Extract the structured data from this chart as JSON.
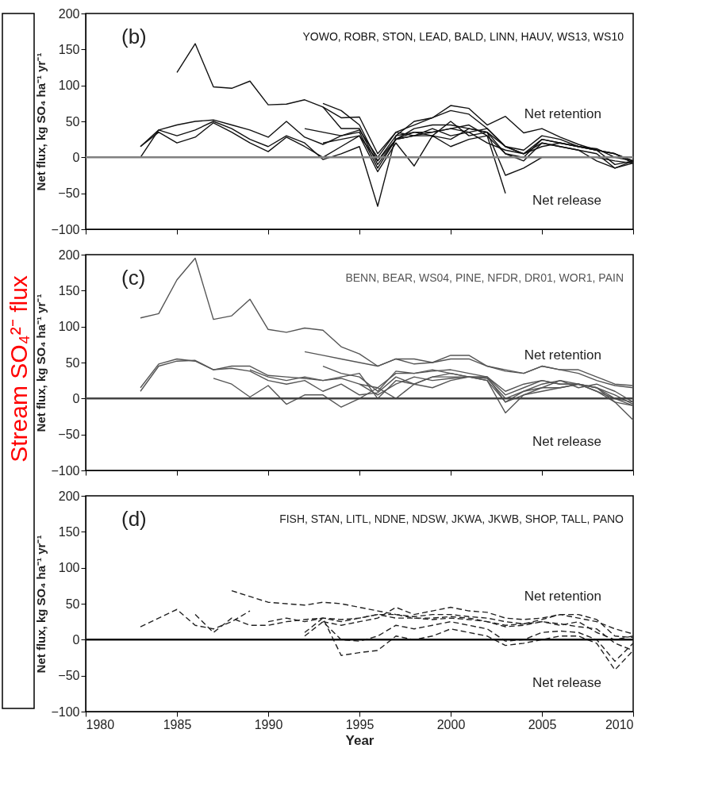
{
  "chart_data": [
    {
      "type": "other",
      "title": "Stream SO₄²⁻ flux",
      "color": "#ff0000"
    },
    {
      "type": "line",
      "ylabel": "Net flux, kg SO₄ ha⁻¹ yr⁻¹",
      "annotations": [
        "(b)",
        "YOWO, ROBR, STON, LEAD, BALD, LINN, HAUV, WS13, WS10",
        "Net retention",
        "Net release"
      ],
      "xlim": [
        1980,
        2010
      ],
      "xticks": [
        1980,
        1985,
        1990,
        1995,
        2000,
        2005,
        2010
      ],
      "ylim": [
        -100,
        200
      ],
      "yticks": [
        -100,
        -50,
        0,
        50,
        100,
        150,
        200
      ],
      "tick_labels": "y",
      "grid": false,
      "legend": false,
      "line_style": "solid",
      "ref_lines": [
        {
          "axis": "y",
          "value": 0,
          "color": "#808080"
        }
      ],
      "series": [
        {
          "color": "#111111",
          "x": [
            1985,
            1986,
            1987,
            1988,
            1989,
            1990,
            1991,
            1992,
            1993,
            1994,
            1995,
            1996,
            1997,
            1998,
            1999,
            2000,
            2001,
            2002,
            2003,
            2004,
            2005,
            2006,
            2007,
            2008,
            2009,
            2010
          ],
          "values": [
            118,
            158,
            98,
            96,
            106,
            73,
            74,
            80,
            70,
            55,
            56,
            5,
            35,
            45,
            55,
            72,
            68,
            45,
            57,
            34,
            40,
            28,
            18,
            10,
            5,
            -8
          ]
        },
        {
          "color": "#111111",
          "x": [
            1983,
            1984,
            1985,
            1986,
            1987,
            1988,
            1989,
            1990,
            1991,
            1992,
            1993,
            1994,
            1995,
            1996,
            1997,
            1998,
            1999,
            2000,
            2001,
            2002,
            2003,
            2004,
            2005,
            2006,
            2007,
            2008,
            2009,
            2010
          ],
          "values": [
            0,
            38,
            30,
            38,
            50,
            40,
            25,
            15,
            30,
            20,
            -3,
            5,
            15,
            -68,
            30,
            35,
            30,
            50,
            30,
            35,
            -25,
            -15,
            0,
            0,
            0,
            0,
            -5,
            -8
          ]
        },
        {
          "color": "#111111",
          "x": [
            1983,
            1984,
            1985,
            1986,
            1987,
            1988,
            1989,
            1990,
            1991,
            1992,
            1993,
            1994,
            1995,
            1996,
            1997,
            1998,
            1999,
            2000,
            2001,
            2002,
            2003,
            2004,
            2005,
            2006,
            2007,
            2008,
            2009,
            2010
          ],
          "values": [
            15,
            38,
            45,
            50,
            52,
            45,
            38,
            28,
            50,
            28,
            18,
            30,
            35,
            -15,
            25,
            35,
            35,
            40,
            35,
            40,
            15,
            5,
            25,
            20,
            15,
            10,
            5,
            -5
          ]
        },
        {
          "color": "#111111",
          "x": [
            1983,
            1984,
            1985,
            1986,
            1987,
            1988,
            1989,
            1990,
            1991,
            1992,
            1993,
            1994,
            1995,
            1996,
            1997,
            1998,
            1999,
            2000,
            2001,
            2002,
            2003,
            2004,
            2005,
            2006,
            2007,
            2008,
            2009,
            2010
          ],
          "values": [
            15,
            35,
            20,
            28,
            48,
            35,
            20,
            8,
            28,
            15,
            0,
            15,
            30,
            -20,
            20,
            -12,
            30,
            15,
            25,
            30,
            5,
            -5,
            20,
            15,
            10,
            -5,
            -15,
            -5
          ]
        },
        {
          "color": "#111111",
          "x": [
            1992,
            1993,
            1994,
            1995,
            1996,
            1997,
            1998,
            1999,
            2000,
            2001,
            2002,
            2003
          ],
          "values": [
            40,
            35,
            30,
            38,
            0,
            35,
            30,
            35,
            40,
            45,
            30,
            -50
          ]
        },
        {
          "color": "#111111",
          "x": [
            1993,
            1994,
            1995,
            1996,
            1997,
            1998,
            1999,
            2000,
            2001,
            2002,
            2003,
            2004,
            2005,
            2006,
            2007,
            2008,
            2009,
            2010
          ],
          "values": [
            75,
            65,
            45,
            -5,
            30,
            50,
            55,
            65,
            60,
            40,
            15,
            10,
            30,
            25,
            15,
            12,
            0,
            -5
          ]
        },
        {
          "color": "#111111",
          "x": [
            1993,
            1994,
            1995,
            1996,
            1997,
            1998,
            1999,
            2000,
            2001,
            2002,
            2003,
            2004,
            2005,
            2006,
            2007,
            2008,
            2009,
            2010
          ],
          "values": [
            70,
            40,
            40,
            -10,
            25,
            40,
            45,
            45,
            40,
            35,
            5,
            0,
            25,
            20,
            15,
            10,
            -10,
            -5
          ]
        },
        {
          "color": "#111111",
          "x": [
            1993,
            1994,
            1995,
            1996,
            1997,
            1998,
            1999,
            2000,
            2001,
            2002,
            2003,
            2004,
            2005,
            2006,
            2007,
            2008,
            2009,
            2010
          ],
          "values": [
            20,
            25,
            30,
            -5,
            25,
            30,
            40,
            30,
            35,
            20,
            10,
            5,
            20,
            15,
            10,
            5,
            -15,
            -8
          ]
        },
        {
          "color": "#111111",
          "x": [
            1997,
            1998,
            1999,
            2000,
            2001,
            2002,
            2003,
            2004,
            2005,
            2006,
            2007,
            2008,
            2009,
            2010
          ],
          "values": [
            25,
            30,
            30,
            25,
            40,
            35,
            15,
            5,
            15,
            20,
            15,
            10,
            5,
            -5
          ]
        }
      ]
    },
    {
      "type": "line",
      "ylabel": "Net flux, kg SO₄ ha⁻¹ yr⁻¹",
      "annotations": [
        "(c)",
        "BENN, BEAR, WS04, PINE, NFDR, DR01, WOR1, PAIN",
        "Net retention",
        "Net release"
      ],
      "xlim": [
        1980,
        2010
      ],
      "xticks": [
        1980,
        1985,
        1990,
        1995,
        2000,
        2005,
        2010
      ],
      "ylim": [
        -100,
        200
      ],
      "yticks": [
        -100,
        -50,
        0,
        50,
        100,
        150,
        200
      ],
      "tick_labels": "y",
      "grid": false,
      "legend": false,
      "line_style": "solid",
      "ref_lines": [
        {
          "axis": "y",
          "value": 0,
          "color": "#444444"
        }
      ],
      "series": [
        {
          "color": "#555555",
          "x": [
            1983,
            1984,
            1985,
            1986,
            1987,
            1988,
            1989,
            1990,
            1991,
            1992,
            1993,
            1994,
            1995,
            1996,
            1997,
            1998,
            1999,
            2000,
            2001,
            2002,
            2003,
            2004,
            2005,
            2006,
            2007,
            2008,
            2009,
            2010
          ],
          "values": [
            112,
            118,
            165,
            195,
            110,
            115,
            138,
            96,
            92,
            98,
            95,
            72,
            62,
            45,
            55,
            48,
            50,
            60,
            60,
            45,
            38,
            35,
            45,
            40,
            35,
            25,
            18,
            15
          ]
        },
        {
          "color": "#555555",
          "x": [
            1983,
            1984,
            1985,
            1986,
            1987,
            1988,
            1989,
            1990,
            1991,
            1992,
            1993,
            1994,
            1995,
            1996,
            1997,
            1998,
            1999,
            2000,
            2001,
            2002,
            2003,
            2004,
            2005,
            2006,
            2007,
            2008,
            2009,
            2010
          ],
          "values": [
            15,
            48,
            55,
            52,
            40,
            45,
            45,
            32,
            30,
            28,
            25,
            28,
            20,
            15,
            35,
            35,
            38,
            40,
            35,
            30,
            5,
            15,
            25,
            20,
            20,
            15,
            0,
            -10
          ]
        },
        {
          "color": "#555555",
          "x": [
            1983,
            1984,
            1985,
            1986,
            1987,
            1988,
            1989,
            1990,
            1991,
            1992,
            1993,
            1994,
            1995,
            1996,
            1997,
            1998,
            1999,
            2000,
            2001,
            2002,
            2003,
            2004,
            2005,
            2006,
            2007,
            2008,
            2009,
            2010
          ],
          "values": [
            10,
            45,
            52,
            53,
            40,
            42,
            38,
            25,
            20,
            25,
            10,
            20,
            5,
            8,
            30,
            20,
            30,
            35,
            30,
            25,
            -20,
            5,
            15,
            15,
            20,
            10,
            -5,
            -30
          ]
        },
        {
          "color": "#555555",
          "x": [
            1987,
            1988,
            1989,
            1990,
            1991,
            1992,
            1993,
            1994,
            1995,
            1996,
            1997,
            1998,
            1999,
            2000,
            2001,
            2002,
            2003,
            2004,
            2005,
            2006,
            2007,
            2008,
            2009,
            2010
          ],
          "values": [
            28,
            20,
            2,
            18,
            -8,
            5,
            5,
            -12,
            0,
            15,
            0,
            20,
            15,
            25,
            30,
            30,
            -5,
            5,
            10,
            15,
            20,
            15,
            -5,
            -10
          ]
        },
        {
          "color": "#555555",
          "x": [
            1989,
            1990,
            1991,
            1992,
            1993,
            1994,
            1995,
            1996,
            1997,
            1998,
            1999,
            2000,
            2001,
            2002,
            2003,
            2004,
            2005,
            2006,
            2007,
            2008,
            2009,
            2010
          ],
          "values": [
            40,
            30,
            25,
            30,
            25,
            30,
            35,
            0,
            25,
            20,
            30,
            30,
            30,
            30,
            10,
            20,
            25,
            20,
            20,
            10,
            0,
            -5
          ]
        },
        {
          "color": "#555555",
          "x": [
            1992,
            1993,
            1994,
            1995,
            1996,
            1997,
            1998,
            1999,
            2000,
            2001,
            2002,
            2003,
            2004,
            2005,
            2006,
            2007,
            2008,
            2009,
            2010
          ],
          "values": [
            65,
            60,
            55,
            50,
            45,
            55,
            55,
            50,
            55,
            55,
            45,
            40,
            35,
            45,
            40,
            40,
            30,
            20,
            18
          ]
        },
        {
          "color": "#555555",
          "x": [
            1993,
            1994,
            1995,
            1996,
            1997,
            1998,
            1999,
            2000,
            2001,
            2002,
            2003,
            2004,
            2005,
            2006,
            2007,
            2008,
            2009,
            2010
          ],
          "values": [
            45,
            35,
            30,
            10,
            38,
            35,
            40,
            35,
            30,
            28,
            0,
            10,
            15,
            25,
            15,
            20,
            10,
            -5
          ]
        },
        {
          "color": "#555555",
          "x": [
            1995,
            1996,
            1997,
            1998,
            1999,
            2000,
            2001,
            2002,
            2003,
            2004,
            2005,
            2006,
            2007,
            2008,
            2009,
            2010
          ],
          "values": [
            20,
            5,
            20,
            30,
            25,
            28,
            30,
            25,
            -5,
            10,
            20,
            25,
            20,
            15,
            5,
            -8
          ]
        }
      ]
    },
    {
      "type": "line",
      "xlabel": "Year",
      "ylabel": "Net flux, kg SO₄ ha⁻¹ yr⁻¹",
      "annotations": [
        "(d)",
        "FISH, STAN, LITL, NDNE, NDSW, JKWA, JKWB, SHOP, TALL, PANO",
        "Net retention",
        "Net release"
      ],
      "xlim": [
        1980,
        2010
      ],
      "xticks": [
        1980,
        1985,
        1990,
        1995,
        2000,
        2005,
        2010
      ],
      "ylim": [
        -100,
        200
      ],
      "yticks": [
        -100,
        -50,
        0,
        50,
        100,
        150,
        200
      ],
      "grid": false,
      "legend": false,
      "line_style": "dashed",
      "ref_lines": [
        {
          "axis": "y",
          "value": 0,
          "color": "#111111"
        }
      ],
      "series": [
        {
          "color": "#222222",
          "x": [
            1983,
            1985,
            1986,
            1987,
            1988,
            1989
          ],
          "values": [
            18,
            42,
            20,
            15,
            25,
            40
          ]
        },
        {
          "color": "#222222",
          "x": [
            1986,
            1987,
            1988,
            1989,
            1990,
            1991,
            1992,
            1993,
            1994,
            1995,
            1996,
            1997,
            1998,
            1999,
            2000,
            2001,
            2002,
            2003,
            2004,
            2005,
            2006,
            2007,
            2008,
            2009,
            2010
          ],
          "values": [
            35,
            10,
            30,
            20,
            20,
            25,
            28,
            30,
            28,
            30,
            35,
            30,
            30,
            30,
            32,
            30,
            25,
            20,
            22,
            25,
            20,
            25,
            10,
            0,
            5
          ]
        },
        {
          "color": "#222222",
          "x": [
            1988,
            1989,
            1990,
            1991,
            1992,
            1993,
            1994,
            1995,
            1996,
            1997,
            1998,
            1999,
            2000,
            2001,
            2002,
            2003,
            2004,
            2005,
            2006,
            2007,
            2008,
            2009,
            2010
          ],
          "values": [
            68,
            60,
            52,
            50,
            48,
            52,
            50,
            45,
            40,
            35,
            32,
            35,
            35,
            32,
            30,
            25,
            22,
            28,
            35,
            30,
            25,
            15,
            8
          ]
        },
        {
          "color": "#222222",
          "x": [
            1992,
            1993,
            1994,
            1995,
            1996,
            1997,
            1998,
            1999,
            2000,
            2001,
            2002,
            2003,
            2004,
            2005,
            2006,
            2007,
            2008,
            2009,
            2010
          ],
          "values": [
            10,
            30,
            -22,
            -18,
            -15,
            5,
            0,
            5,
            15,
            10,
            5,
            -8,
            -5,
            0,
            5,
            5,
            -5,
            -42,
            -15
          ]
        },
        {
          "color": "#222222",
          "x": [
            1992,
            1993,
            1994,
            1995,
            1996,
            1997,
            1998,
            1999,
            2000,
            2001,
            2002,
            2003,
            2004,
            2005,
            2006,
            2007,
            2008,
            2009,
            2010
          ],
          "values": [
            5,
            25,
            0,
            -2,
            5,
            20,
            15,
            20,
            25,
            20,
            15,
            -2,
            0,
            10,
            12,
            10,
            0,
            -30,
            -5
          ]
        },
        {
          "color": "#222222",
          "x": [
            1993,
            1994,
            1995,
            1996,
            1997,
            1998,
            1999,
            2000,
            2001,
            2002,
            2003,
            2004,
            2005,
            2006,
            2007,
            2008,
            2009,
            2010
          ],
          "values": [
            25,
            20,
            25,
            30,
            45,
            35,
            40,
            45,
            40,
            38,
            30,
            28,
            30,
            35,
            35,
            28,
            5,
            3
          ]
        },
        {
          "color": "#222222",
          "x": [
            1990,
            1991,
            1992,
            1993,
            1994,
            1995,
            1996,
            1997,
            1998,
            1999,
            2000,
            2001,
            2002,
            2003,
            2004,
            2005,
            2006,
            2007,
            2008,
            2009,
            2010
          ],
          "values": [
            25,
            30,
            25,
            30,
            25,
            30,
            35,
            35,
            30,
            28,
            30,
            28,
            25,
            18,
            20,
            25,
            22,
            18,
            15,
            -5,
            -15
          ]
        }
      ]
    }
  ]
}
